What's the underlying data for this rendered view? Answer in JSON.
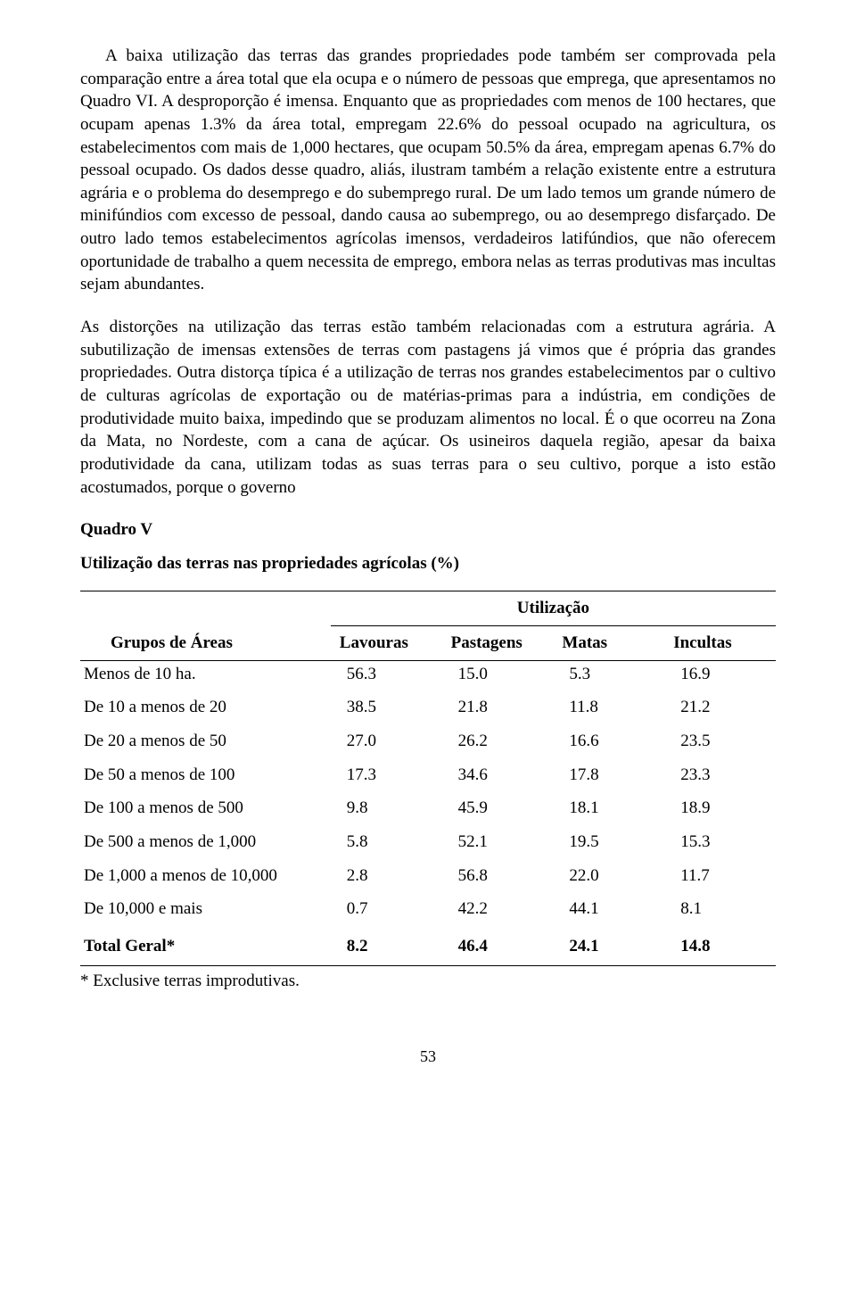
{
  "paragraphs": {
    "p1": "A baixa utilização das terras das grandes propriedades pode também ser comprovada pela comparação entre a área total que ela ocupa e o número de pessoas que emprega, que apresentamos no Quadro VI. A desproporção é imensa. Enquanto que as propriedades com menos de 100 hectares, que ocupam apenas 1.3% da área total, empregam 22.6% do pessoal ocupado na agricultura, os estabelecimentos com mais de 1,000 hectares, que ocupam 50.5% da área, empregam apenas 6.7% do pessoal ocupado. Os dados desse quadro, aliás, ilustram também a relação existente entre a estrutura agrária e o problema do desemprego e do subemprego rural. De um lado temos um grande número de minifúndios com excesso de pessoal, dando causa ao subemprego, ou ao desemprego disfarçado. De outro lado temos estabelecimentos agrícolas imensos, verdadeiros latifúndios, que não oferecem oportunidade de trabalho a quem necessita de emprego, embora nelas as terras produtivas mas incultas sejam abundantes.",
    "p2": "As distorções na utilização das terras estão também relacionadas com a estrutura agrária. A subutilização de imensas extensões de terras com pastagens já vimos que é própria das grandes propriedades. Outra distorça típica é a utilização de terras nos grandes estabelecimentos par o cultivo de culturas agrícolas de exportação ou de matérias-primas para a indústria, em condições de produtividade muito baixa, impedindo que se produzam alimentos no local. É o que ocorreu na Zona da Mata, no Nordeste, com a cana de açúcar. Os usineiros daquela região, apesar da baixa produtividade da cana, utilizam todas as suas terras para o seu cultivo, porque a isto estão acostumados, porque o governo"
  },
  "quadro": {
    "title": "Quadro V",
    "subtitle": "Utilização das terras nas propriedades agrícolas (%)",
    "headers": {
      "groups": "Grupos de Áreas",
      "utilization": "Utilização",
      "col1": "Lavouras",
      "col2": "Pastagens",
      "col3": "Matas",
      "col4": "Incultas"
    },
    "rows": [
      {
        "label": "Menos de 10 ha.",
        "v1": "56.3",
        "v2": "15.0",
        "v3": "5.3",
        "v4": "16.9"
      },
      {
        "label": "De 10 a menos de 20",
        "v1": "38.5",
        "v2": "21.8",
        "v3": "11.8",
        "v4": "21.2"
      },
      {
        "label": "De 20 a menos de 50",
        "v1": "27.0",
        "v2": "26.2",
        "v3": "16.6",
        "v4": "23.5"
      },
      {
        "label": "De 50 a menos de 100",
        "v1": "17.3",
        "v2": "34.6",
        "v3": "17.8",
        "v4": "23.3"
      },
      {
        "label": "De 100 a menos de 500",
        "v1": "9.8",
        "v2": "45.9",
        "v3": "18.1",
        "v4": "18.9"
      },
      {
        "label": "De 500 a menos de 1,000",
        "v1": "5.8",
        "v2": "52.1",
        "v3": "19.5",
        "v4": "15.3"
      },
      {
        "label": "De 1,000 a menos de 10,000",
        "v1": "2.8",
        "v2": "56.8",
        "v3": "22.0",
        "v4": "11.7"
      },
      {
        "label": "De 10,000 e mais",
        "v1": "0.7",
        "v2": "42.2",
        "v3": "44.1",
        "v4": "8.1"
      }
    ],
    "total": {
      "label": "Total Geral*",
      "v1": "8.2",
      "v2": "46.4",
      "v3": "24.1",
      "v4": "14.8"
    },
    "footnote": "* Exclusive terras improdutivas."
  },
  "pageNumber": "53"
}
